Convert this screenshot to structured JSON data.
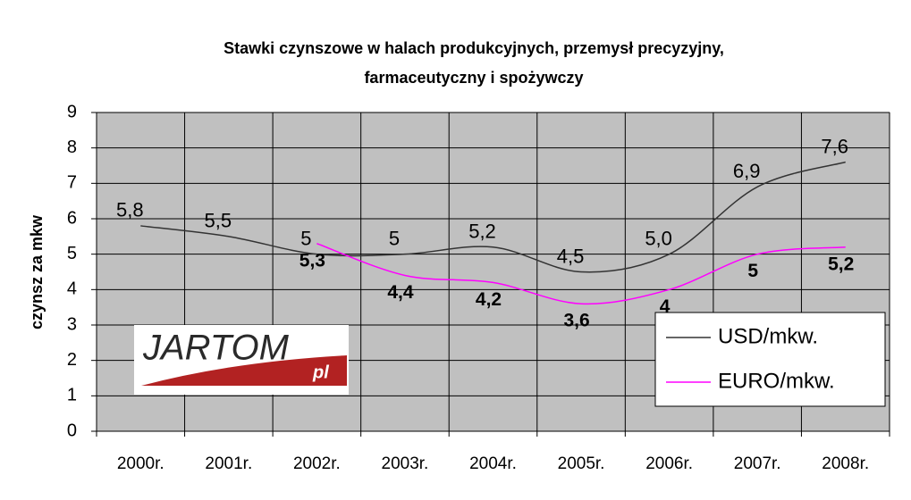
{
  "chart_data": {
    "type": "line",
    "title": [
      "Stawki czynszowe w halach produkcyjnych, przemysł precyzyjny,",
      "farmaceutyczny i spożywczy"
    ],
    "y_label": "czynsz za mkw",
    "categories": [
      "2000r.",
      "2001r.",
      "2002r.",
      "2003r.",
      "2004r.",
      "2005r.",
      "2006r.",
      "2007r.",
      "2008r."
    ],
    "series": [
      {
        "name": "USD/mkw.",
        "color": "#333333",
        "values": [
          5.8,
          5.5,
          5,
          5,
          5.2,
          4.5,
          5.0,
          6.9,
          7.6
        ],
        "value_labels": [
          "5,8",
          "5,5",
          "5",
          "5",
          "5,2",
          "4,5",
          "5,0",
          "6,9",
          "7,6"
        ]
      },
      {
        "name": "EURO/mkw.",
        "color": "#ff00ff",
        "values": [
          null,
          null,
          5.3,
          4.4,
          4.2,
          3.6,
          4,
          5,
          5.2
        ],
        "value_labels": [
          null,
          null,
          "5,3",
          "4,4",
          "4,2",
          "3,6",
          "4",
          "5",
          "5,2"
        ]
      }
    ],
    "ylim": [
      0,
      9
    ],
    "yticks": [
      0,
      1,
      2,
      3,
      4,
      5,
      6,
      7,
      8,
      9
    ],
    "grid": true,
    "smooth": true,
    "legend": "lower right"
  },
  "logo": {
    "text": "JARTOM",
    "suffix": "pl"
  }
}
